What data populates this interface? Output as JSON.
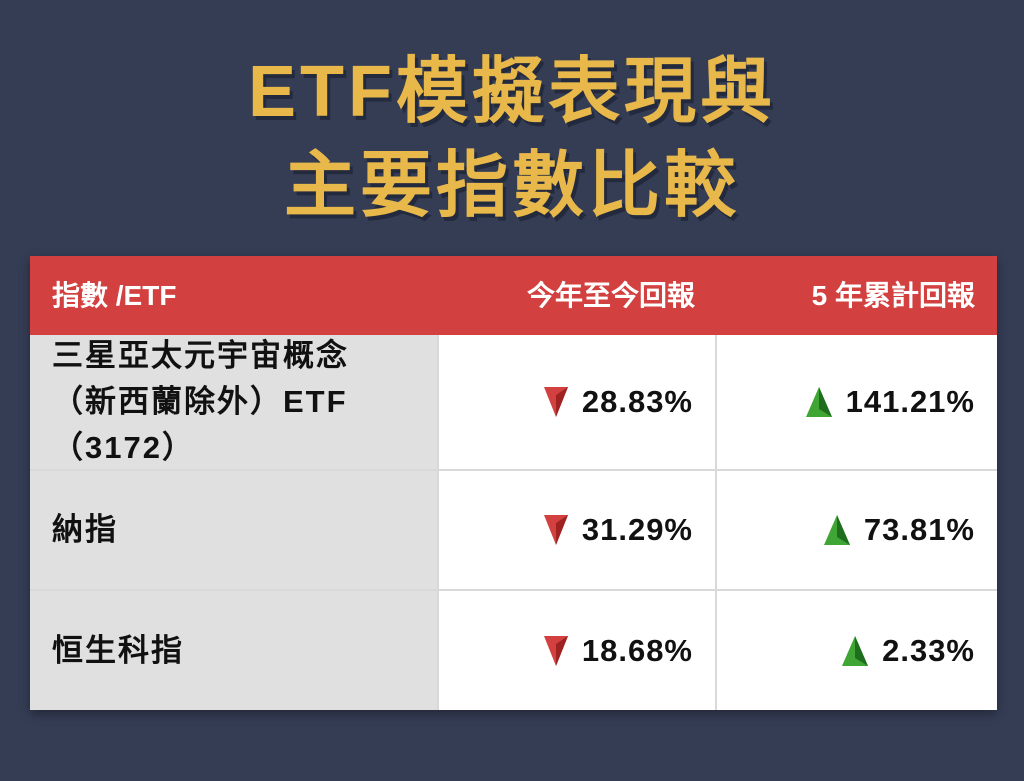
{
  "header": {
    "title_lines": [
      "ETF模擬表現與",
      "主要指數比較"
    ]
  },
  "table": {
    "columns": [
      "指數 /ETF",
      "今年至今回報",
      "5 年累計回報"
    ],
    "rows": [
      [
        "三星亞太元宇宙概念（新西蘭除外）ETF（3172）",
        "28.83%",
        "141.21%"
      ],
      [
        "納指",
        "31.29%",
        "73.81%"
      ],
      [
        "恒生科指",
        "18.68%",
        "2.33%"
      ]
    ]
  }
}
